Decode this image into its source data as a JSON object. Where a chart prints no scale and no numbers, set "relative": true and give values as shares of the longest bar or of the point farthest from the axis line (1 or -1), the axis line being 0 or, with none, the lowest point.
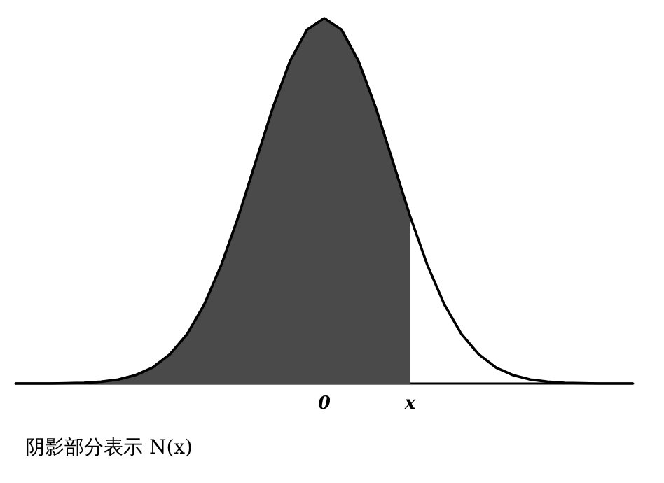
{
  "chart_data": {
    "type": "area",
    "relative": true,
    "categories": [
      null,
      null,
      null,
      null,
      null,
      null,
      null,
      null,
      null,
      null,
      null,
      null,
      null,
      null,
      null,
      null,
      null,
      null,
      "0",
      null,
      null,
      null,
      null,
      "x",
      null,
      null,
      null,
      null,
      null,
      null,
      null,
      null,
      null,
      null,
      null,
      null,
      null
    ],
    "series": [
      {
        "color": "#4a4a4a",
        "values": [
          0,
          0,
          0,
          0.001,
          0.002,
          0.005,
          0.011,
          0.023,
          0.044,
          0.08,
          0.135,
          0.216,
          0.325,
          0.458,
          0.607,
          0.755,
          0.882,
          0.969,
          1,
          0.969,
          0.882,
          0.755,
          0.607,
          0.458,
          null,
          null,
          null,
          null,
          null,
          null,
          null,
          null,
          null,
          null,
          null,
          null,
          null
        ]
      },
      {
        "type": "line",
        "color": "#000000",
        "values": [
          0,
          0,
          0,
          0.001,
          0.002,
          0.005,
          0.011,
          0.023,
          0.044,
          0.08,
          0.135,
          0.216,
          0.325,
          0.458,
          0.607,
          0.755,
          0.882,
          0.969,
          1,
          0.969,
          0.882,
          0.755,
          0.607,
          0.458,
          0.325,
          0.216,
          0.135,
          0.08,
          0.044,
          0.023,
          0.011,
          0.005,
          0.002,
          0.001,
          0,
          0,
          0
        ]
      }
    ],
    "annotations": [
      "阴影部分表示 N(x)"
    ]
  }
}
